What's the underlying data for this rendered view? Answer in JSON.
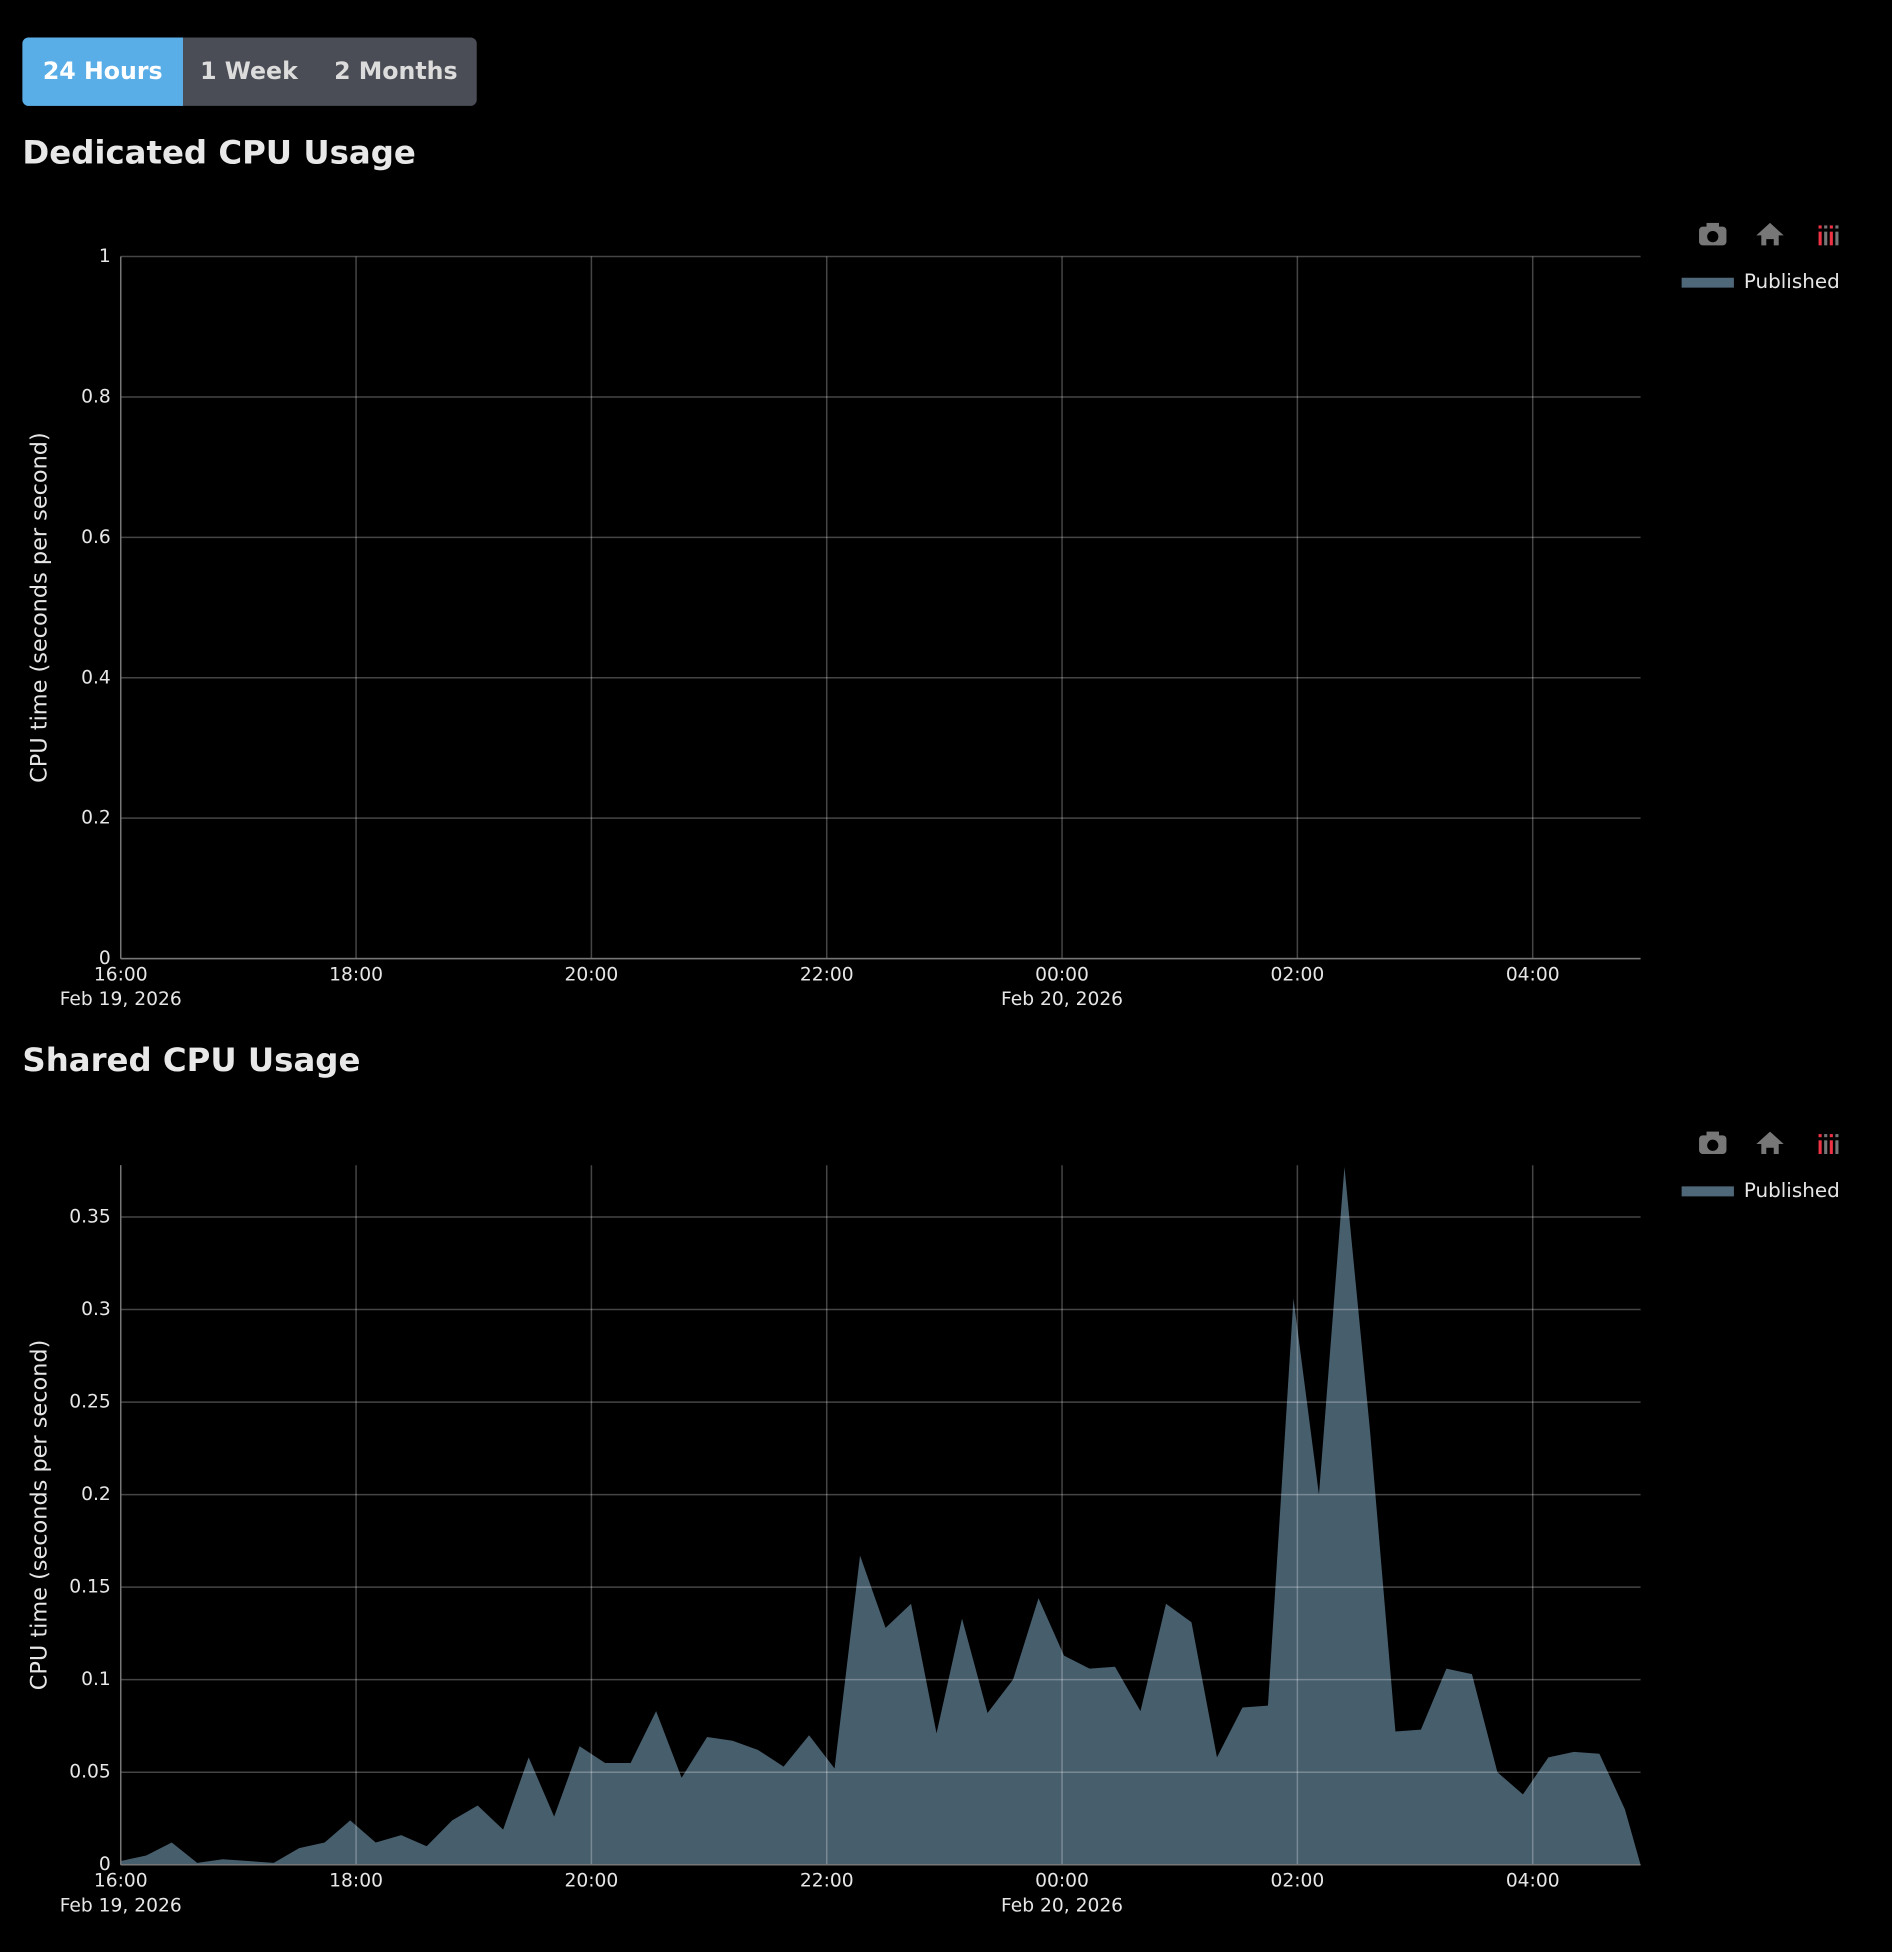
{
  "range_buttons": [
    "24 Hours",
    "1 Week",
    "2 Months"
  ],
  "active_button": 0,
  "chart_data": [
    {
      "type": "area",
      "title": "Dedicated CPU Usage",
      "y_label": "CPU time (seconds per second)",
      "x": [],
      "series": [
        {
          "name": "Published",
          "color": "#4f6879",
          "values": []
        }
      ],
      "xlim": [
        "2026-02-19T16:00",
        "2026-02-20T04:55"
      ],
      "xticks": [
        {
          "value": "2026-02-19T16:00",
          "label": "16:00"
        },
        {
          "value": "2026-02-19T18:00",
          "label": "18:00"
        },
        {
          "value": "2026-02-19T20:00",
          "label": "20:00"
        },
        {
          "value": "2026-02-19T22:00",
          "label": "22:00"
        },
        {
          "value": "2026-02-20T00:00",
          "label": "00:00"
        },
        {
          "value": "2026-02-20T02:00",
          "label": "02:00"
        },
        {
          "value": "2026-02-20T04:00",
          "label": "04:00"
        }
      ],
      "xtick_dates": [
        {
          "value": "2026-02-19T16:00",
          "label": "Feb 19, 2026"
        },
        {
          "value": "2026-02-20T00:00",
          "label": "Feb 20, 2026"
        }
      ],
      "ylim": [
        0,
        1
      ],
      "yticks": [
        0,
        0.2,
        0.4,
        0.6,
        0.8,
        1
      ],
      "grid": true,
      "legend": "right"
    },
    {
      "type": "area",
      "title": "Shared CPU Usage",
      "y_label": "CPU time (seconds per second)",
      "x": [
        "2026-02-19T16:00",
        "2026-02-19T16:13",
        "2026-02-19T16:26",
        "2026-02-19T16:39",
        "2026-02-19T16:52",
        "2026-02-19T17:05",
        "2026-02-19T17:18",
        "2026-02-19T17:31",
        "2026-02-19T17:44",
        "2026-02-19T17:57",
        "2026-02-19T18:10",
        "2026-02-19T18:23",
        "2026-02-19T18:36",
        "2026-02-19T18:49",
        "2026-02-19T19:02",
        "2026-02-19T19:15",
        "2026-02-19T19:28",
        "2026-02-19T19:41",
        "2026-02-19T19:54",
        "2026-02-19T20:07",
        "2026-02-19T20:20",
        "2026-02-19T20:33",
        "2026-02-19T20:46",
        "2026-02-19T20:59",
        "2026-02-19T21:12",
        "2026-02-19T21:25",
        "2026-02-19T21:38",
        "2026-02-19T21:51",
        "2026-02-19T22:04",
        "2026-02-19T22:17",
        "2026-02-19T22:30",
        "2026-02-19T22:43",
        "2026-02-19T22:56",
        "2026-02-19T23:09",
        "2026-02-19T23:22",
        "2026-02-19T23:35",
        "2026-02-19T23:48",
        "2026-02-20T00:01",
        "2026-02-20T00:14",
        "2026-02-20T00:27",
        "2026-02-20T00:40",
        "2026-02-20T00:53",
        "2026-02-20T01:06",
        "2026-02-20T01:19",
        "2026-02-20T01:32",
        "2026-02-20T01:45",
        "2026-02-20T01:58",
        "2026-02-20T02:11",
        "2026-02-20T02:24",
        "2026-02-20T02:37",
        "2026-02-20T02:50",
        "2026-02-20T03:03",
        "2026-02-20T03:16",
        "2026-02-20T03:29",
        "2026-02-20T03:42",
        "2026-02-20T03:55",
        "2026-02-20T04:08",
        "2026-02-20T04:21",
        "2026-02-20T04:34",
        "2026-02-20T04:47",
        "2026-02-20T04:55"
      ],
      "series": [
        {
          "name": "Published",
          "color": "#4f6879",
          "values": [
            0.002,
            0.005,
            0.012,
            0.001,
            0.003,
            0.002,
            0.001,
            0.009,
            0.012,
            0.024,
            0.012,
            0.016,
            0.01,
            0.024,
            0.032,
            0.019,
            0.058,
            0.026,
            0.064,
            0.055,
            0.055,
            0.083,
            0.047,
            0.069,
            0.067,
            0.062,
            0.053,
            0.07,
            0.052,
            0.167,
            0.128,
            0.141,
            0.071,
            0.133,
            0.082,
            0.1,
            0.144,
            0.113,
            0.106,
            0.107,
            0.083,
            0.141,
            0.131,
            0.058,
            0.085,
            0.086,
            0.306,
            0.2,
            0.377,
            0.235,
            0.072,
            0.073,
            0.106,
            0.103,
            0.05,
            0.038,
            0.058,
            0.061,
            0.06,
            0.03,
            0.0
          ]
        }
      ],
      "xlim": [
        "2026-02-19T16:00",
        "2026-02-20T04:55"
      ],
      "xticks": [
        {
          "value": "2026-02-19T16:00",
          "label": "16:00"
        },
        {
          "value": "2026-02-19T18:00",
          "label": "18:00"
        },
        {
          "value": "2026-02-19T20:00",
          "label": "20:00"
        },
        {
          "value": "2026-02-19T22:00",
          "label": "22:00"
        },
        {
          "value": "2026-02-20T00:00",
          "label": "00:00"
        },
        {
          "value": "2026-02-20T02:00",
          "label": "02:00"
        },
        {
          "value": "2026-02-20T04:00",
          "label": "04:00"
        }
      ],
      "xtick_dates": [
        {
          "value": "2026-02-19T16:00",
          "label": "Feb 19, 2026"
        },
        {
          "value": "2026-02-20T00:00",
          "label": "Feb 20, 2026"
        }
      ],
      "ylim": [
        0,
        0.378
      ],
      "yticks": [
        0,
        0.05,
        0.1,
        0.15,
        0.2,
        0.25,
        0.3,
        0.35
      ],
      "grid": true,
      "legend": "right"
    }
  ]
}
